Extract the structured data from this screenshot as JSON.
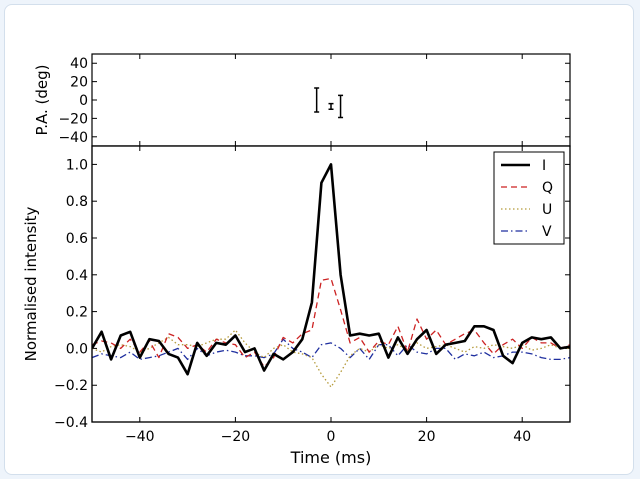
{
  "chart_data": {
    "type": "line",
    "xlabel": "Time (ms)",
    "xlim": [
      -50,
      50
    ],
    "xticks": [
      -40,
      -20,
      0,
      20,
      40
    ],
    "panels": {
      "pa": {
        "ylabel": "P.A. (deg)",
        "ylim": [
          -50,
          50
        ],
        "yticks": [
          40,
          20,
          0,
          -20,
          -40
        ],
        "points": [
          {
            "x": -3,
            "y": 0,
            "err": 13
          },
          {
            "x": 0,
            "y": -7,
            "err": 3
          },
          {
            "x": 2,
            "y": -7,
            "err": 12
          }
        ]
      },
      "intensity": {
        "ylabel": "Normalised intensity",
        "ylim": [
          -0.4,
          1.1
        ],
        "yticks": [
          1.0,
          0.8,
          0.6,
          0.4,
          0.2,
          0.0,
          -0.2,
          -0.4
        ],
        "legend_position": "upper right"
      }
    },
    "x": [
      -50,
      -48,
      -46,
      -44,
      -42,
      -40,
      -38,
      -36,
      -34,
      -32,
      -30,
      -28,
      -26,
      -24,
      -22,
      -20,
      -18,
      -16,
      -14,
      -12,
      -10,
      -8,
      -6,
      -4,
      -2,
      0,
      2,
      4,
      6,
      8,
      10,
      12,
      14,
      16,
      18,
      20,
      22,
      24,
      26,
      28,
      30,
      32,
      34,
      36,
      38,
      40,
      42,
      44,
      46,
      48,
      50
    ],
    "series": [
      {
        "name": "I",
        "color": "#000000",
        "style": "solid",
        "values": [
          0.0,
          0.09,
          -0.06,
          0.07,
          0.09,
          -0.05,
          0.05,
          0.04,
          -0.03,
          -0.05,
          -0.14,
          0.03,
          -0.04,
          0.03,
          0.02,
          0.07,
          -0.02,
          0.0,
          -0.12,
          -0.03,
          -0.06,
          -0.02,
          0.05,
          0.25,
          0.9,
          1.0,
          0.4,
          0.07,
          0.08,
          0.07,
          0.08,
          -0.05,
          0.06,
          -0.03,
          0.05,
          0.1,
          -0.03,
          0.02,
          0.03,
          0.04,
          0.12,
          0.12,
          0.1,
          -0.04,
          -0.08,
          0.03,
          0.06,
          0.05,
          0.06,
          0.0,
          0.01
        ]
      },
      {
        "name": "Q",
        "color": "#cc2222",
        "style": "dashed",
        "values": [
          0.02,
          0.04,
          0.03,
          0.0,
          0.05,
          -0.02,
          0.04,
          -0.05,
          0.08,
          0.06,
          0.0,
          0.02,
          -0.02,
          0.05,
          0.03,
          0.02,
          -0.05,
          -0.02,
          -0.1,
          -0.05,
          0.06,
          0.03,
          0.08,
          0.1,
          0.37,
          0.38,
          0.21,
          0.03,
          0.06,
          -0.02,
          0.04,
          0.02,
          0.12,
          -0.02,
          0.16,
          0.05,
          0.1,
          0.02,
          0.05,
          0.08,
          0.1,
          0.03,
          -0.03,
          0.02,
          0.05,
          0.0,
          0.06,
          0.03,
          0.03,
          0.0,
          0.02
        ]
      },
      {
        "name": "U",
        "color": "#b59a3a",
        "style": "dotted",
        "values": [
          0.0,
          -0.02,
          0.01,
          0.02,
          0.01,
          -0.02,
          0.0,
          0.03,
          0.06,
          0.02,
          0.02,
          0.01,
          0.03,
          0.05,
          0.05,
          0.1,
          0.03,
          -0.02,
          -0.05,
          0.0,
          0.02,
          -0.02,
          -0.03,
          -0.05,
          -0.14,
          -0.21,
          -0.13,
          -0.04,
          0.0,
          -0.02,
          0.02,
          0.0,
          0.02,
          -0.01,
          0.03,
          0.0,
          0.01,
          0.02,
          0.0,
          -0.02,
          0.01,
          0.0,
          0.02,
          0.01,
          0.0,
          0.02,
          -0.01,
          0.0,
          0.02,
          0.0,
          0.0
        ]
      },
      {
        "name": "V",
        "color": "#1f2f9f",
        "style": "dashdot",
        "values": [
          -0.05,
          -0.03,
          -0.04,
          -0.05,
          -0.02,
          -0.06,
          -0.05,
          -0.04,
          -0.02,
          0.0,
          -0.06,
          0.0,
          -0.04,
          -0.02,
          -0.01,
          -0.02,
          -0.04,
          -0.04,
          -0.05,
          -0.03,
          0.05,
          0.0,
          -0.02,
          -0.05,
          0.02,
          0.03,
          0.0,
          -0.05,
          0.0,
          -0.06,
          0.02,
          0.02,
          -0.04,
          0.02,
          -0.02,
          -0.03,
          0.0,
          0.0,
          -0.06,
          -0.03,
          -0.04,
          -0.02,
          -0.05,
          -0.04,
          -0.02,
          -0.02,
          -0.03,
          -0.05,
          -0.06,
          -0.06,
          -0.05
        ]
      }
    ]
  }
}
